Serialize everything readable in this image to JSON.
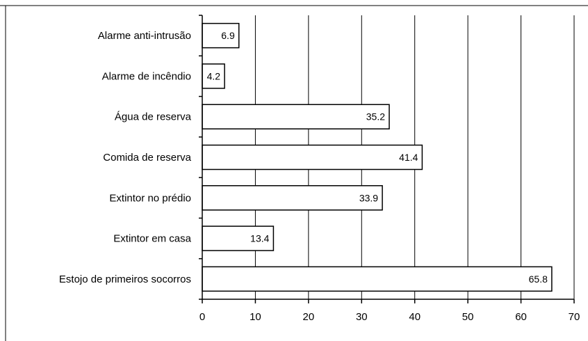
{
  "chart_data": {
    "type": "bar",
    "orientation": "horizontal",
    "title": "",
    "xlabel": "",
    "ylabel": "",
    "categories": [
      "Alarme anti-intrusão",
      "Alarme de incêndio",
      "Água de reserva",
      "Comida de reserva",
      "Extintor no prédio",
      "Extintor em casa",
      "Estojo de primeiros socorros"
    ],
    "values": [
      6.9,
      4.2,
      35.2,
      41.4,
      33.9,
      13.4,
      65.8
    ],
    "data_labels": [
      "6.9",
      "4.2",
      "35.2",
      "41.4",
      "33.9",
      "13.4",
      "65.8"
    ],
    "xlim": [
      0,
      70
    ],
    "xticks": [
      0,
      10,
      20,
      30,
      40,
      50,
      60,
      70
    ],
    "xtick_labels": [
      "0",
      "10",
      "20",
      "30",
      "40",
      "50",
      "60",
      "70"
    ],
    "grid": "vertical",
    "legend": "none",
    "colors": {
      "bar_fill": "#ffffff",
      "bar_stroke": "#000000",
      "grid": "#000000",
      "frame": "#000000"
    }
  }
}
